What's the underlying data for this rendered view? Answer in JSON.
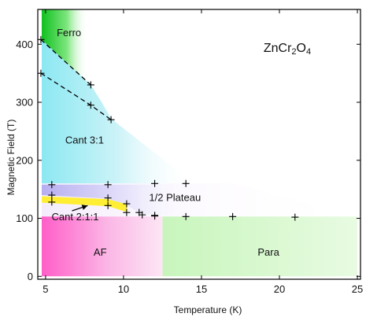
{
  "chart_data": {
    "type": "scatter",
    "title": "",
    "compound": {
      "base": "ZnCr",
      "sub1": "2",
      "mid": "O",
      "sub2": "4"
    },
    "xlabel": "Temperature (K)",
    "ylabel": "Magnetic Field (T)",
    "xlim": [
      4.5,
      25.2
    ],
    "ylim": [
      -5,
      460
    ],
    "xticks": [
      5,
      10,
      15,
      20,
      25
    ],
    "yticks": [
      0,
      100,
      200,
      300,
      400
    ],
    "grid": false,
    "regions": [
      {
        "label": "Ferro",
        "x": 6.5,
        "y": 420,
        "color": "#22cc22"
      },
      {
        "label": "Cant 3:1",
        "x": 7.5,
        "y": 235,
        "color": "#7fe3f0"
      },
      {
        "label": "1/2 Plateau",
        "x": 13.3,
        "y": 136,
        "color": "#b8aef0"
      },
      {
        "label": "Cant 2:1:1",
        "x": 6.9,
        "y": 103,
        "color": "#ffee33"
      },
      {
        "label": "AF",
        "x": 8.5,
        "y": 42,
        "color": "#ff66cc"
      },
      {
        "label": "Para",
        "x": 19.3,
        "y": 42,
        "color": "#aaee99"
      }
    ],
    "series": [
      {
        "points": [
          [
            4.7,
            408
          ],
          [
            7.9,
            330
          ],
          [
            4.7,
            350
          ],
          [
            7.9,
            295
          ],
          [
            9.2,
            270
          ]
        ]
      },
      {
        "points": [
          [
            5.4,
            158
          ],
          [
            9.0,
            158
          ],
          [
            12.0,
            160
          ],
          [
            14.0,
            160
          ]
        ]
      },
      {
        "points": [
          [
            5.4,
            140
          ],
          [
            9.0,
            135
          ],
          [
            10.2,
            125
          ],
          [
            11.0,
            110
          ],
          [
            12.0,
            105
          ]
        ]
      },
      {
        "points": [
          [
            5.4,
            128
          ],
          [
            9.0,
            122
          ],
          [
            10.2,
            110
          ],
          [
            11.2,
            106
          ],
          [
            12.0,
            104
          ],
          [
            14.0,
            103
          ],
          [
            17.0,
            103
          ],
          [
            21.0,
            102
          ]
        ]
      }
    ],
    "dashed_lines": [
      [
        [
          4.7,
          408
        ],
        [
          7.9,
          330
        ]
      ],
      [
        [
          4.7,
          350
        ],
        [
          7.9,
          295
        ],
        [
          9.2,
          270
        ]
      ]
    ]
  }
}
